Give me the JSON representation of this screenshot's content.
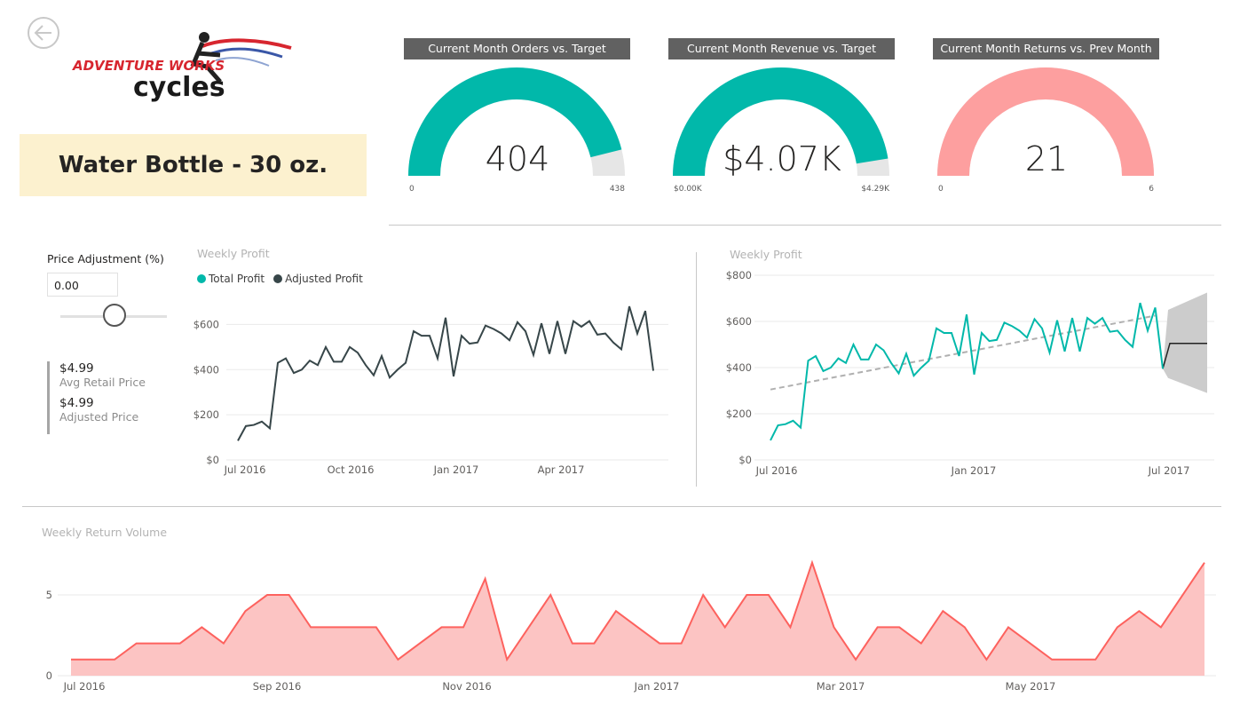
{
  "nav": {
    "back_icon": "back-arrow-icon"
  },
  "logo": {
    "line1": "ADVENTURE WORKS",
    "line2": "cycles"
  },
  "product": {
    "title": "Water Bottle - 30 oz."
  },
  "kpis": [
    {
      "title": "Current Month Orders vs. Target",
      "value": "404",
      "min": "0",
      "max": "438",
      "fraction": 0.922,
      "color": "#01b8aa"
    },
    {
      "title": "Current Month Revenue vs. Target",
      "value": "$4.07K",
      "min": "$0.00K",
      "max": "$4.29K",
      "fraction": 0.949,
      "color": "#01b8aa"
    },
    {
      "title": "Current Month Returns vs. Prev Month",
      "value": "21",
      "min": "0",
      "max": "6",
      "fraction": 1.0,
      "color": "#fd9f9f"
    }
  ],
  "price_adjustment": {
    "label": "Price Adjustment (%)",
    "value": "0.00",
    "slider_value": 0
  },
  "prices": {
    "avg_retail_value": "$4.99",
    "avg_retail_label": "Avg Retail Price",
    "adjusted_value": "$4.99",
    "adjusted_label": "Adjusted Price"
  },
  "colors": {
    "teal": "#01b8aa",
    "dark": "#374649",
    "salmon": "#fd625e",
    "salmon_fill": "#fcc4c3"
  },
  "chart_data": [
    {
      "type": "line",
      "title": "Weekly Profit",
      "legend": [
        "Total Profit",
        "Adjusted Profit"
      ],
      "ylim": [
        0,
        700
      ],
      "yticks": [
        "$0",
        "$200",
        "$400",
        "$600"
      ],
      "xticks": [
        "Jul 2016",
        "Oct 2016",
        "Jan 2017",
        "Apr 2017"
      ],
      "series": [
        {
          "name": "Adjusted Profit",
          "color": "#374649",
          "values": [
            85,
            150,
            155,
            170,
            140,
            430,
            450,
            385,
            400,
            440,
            420,
            500,
            435,
            435,
            500,
            475,
            420,
            375,
            460,
            365,
            400,
            430,
            570,
            550,
            550,
            450,
            630,
            370,
            550,
            515,
            520,
            595,
            580,
            560,
            530,
            610,
            570,
            465,
            605,
            470,
            615,
            470,
            615,
            590,
            615,
            555,
            560,
            520,
            490,
            680,
            560,
            660,
            395
          ]
        }
      ]
    },
    {
      "type": "line",
      "title": "Weekly Profit",
      "ylim": [
        0,
        800
      ],
      "yticks": [
        "$0",
        "$200",
        "$400",
        "$600",
        "$800"
      ],
      "xticks": [
        "Jul 2016",
        "Jan 2017",
        "Jul 2017"
      ],
      "series": [
        {
          "name": "Total Profit",
          "color": "#01b8aa",
          "values": [
            85,
            150,
            155,
            170,
            140,
            430,
            450,
            385,
            400,
            440,
            420,
            500,
            435,
            435,
            500,
            475,
            420,
            375,
            460,
            365,
            400,
            430,
            570,
            550,
            550,
            450,
            630,
            370,
            550,
            515,
            520,
            595,
            580,
            560,
            530,
            610,
            570,
            465,
            605,
            470,
            615,
            470,
            615,
            590,
            615,
            555,
            560,
            520,
            490,
            680,
            560,
            660,
            395
          ]
        },
        {
          "name": "Trend",
          "start": 305,
          "end": 625
        },
        {
          "name": "Forecast",
          "value": 505,
          "upper_start": 650,
          "upper_end": 725,
          "lower_start": 355,
          "lower_end": 290
        }
      ]
    },
    {
      "type": "area",
      "title": "Weekly Return Volume",
      "ylim": [
        0,
        7.2
      ],
      "yticks": [
        "0",
        "5"
      ],
      "xticks": [
        "Jul 2016",
        "Sep 2016",
        "Nov 2016",
        "Jan 2017",
        "Mar 2017",
        "May 2017"
      ],
      "values": [
        1,
        1,
        1,
        2,
        2,
        2,
        3,
        2,
        4,
        5,
        5,
        3,
        3,
        3,
        3,
        1,
        2,
        3,
        3,
        6,
        1,
        3,
        5,
        2,
        2,
        4,
        3,
        2,
        2,
        5,
        3,
        5,
        5,
        3,
        7,
        3,
        1,
        3,
        3,
        2,
        4,
        3,
        1,
        3,
        2,
        1,
        1,
        1,
        3,
        4,
        3,
        5,
        7
      ]
    }
  ]
}
